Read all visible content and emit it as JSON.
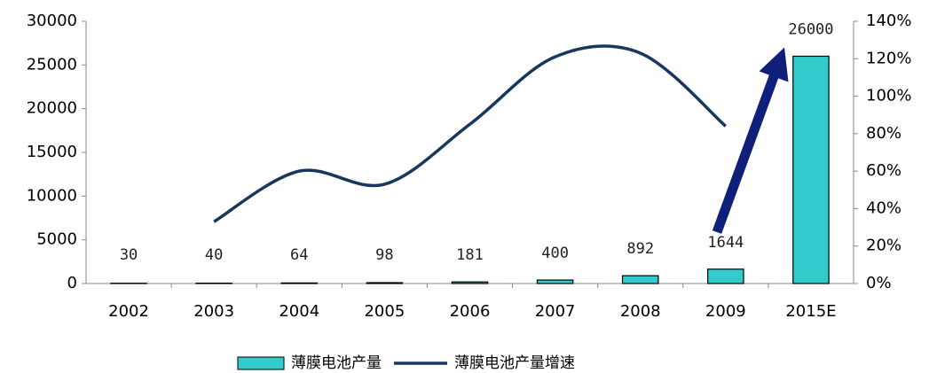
{
  "chart_data": {
    "type": "bar",
    "categories": [
      "2002",
      "2003",
      "2004",
      "2005",
      "2006",
      "2007",
      "2008",
      "2009",
      "2015E"
    ],
    "series": [
      {
        "name": "薄膜电池产量",
        "type": "bar",
        "color": "#33cccc",
        "values": [
          30,
          40,
          64,
          98,
          181,
          400,
          892,
          1644,
          26000
        ]
      },
      {
        "name": "薄膜电池产量增速",
        "type": "line",
        "axis": "y2",
        "color": "#17375e",
        "values": [
          null,
          33,
          60,
          53,
          85,
          121,
          123,
          84,
          null
        ]
      }
    ],
    "ylim": [
      0,
      30000
    ],
    "yticks": [
      0,
      5000,
      10000,
      15000,
      20000,
      25000,
      30000
    ],
    "y2lim": [
      0,
      140
    ],
    "y2ticks": [
      {
        "value": 0,
        "label": "0%"
      },
      {
        "value": 20,
        "label": "20%"
      },
      {
        "value": 40,
        "label": "40%"
      },
      {
        "value": 60,
        "label": "60%"
      },
      {
        "value": 80,
        "label": "80%"
      },
      {
        "value": 100,
        "label": "100%"
      },
      {
        "value": 120,
        "label": "120%"
      },
      {
        "value": 140,
        "label": "140%"
      }
    ],
    "legend": "bottom"
  }
}
